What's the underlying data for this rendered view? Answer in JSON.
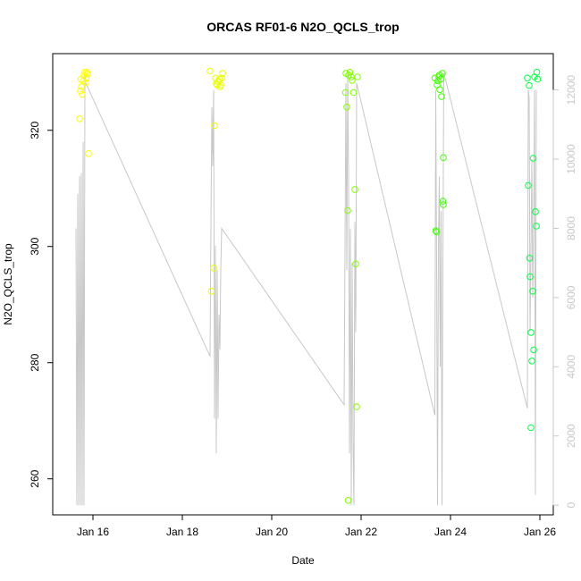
{
  "chart_data": {
    "type": "scatter",
    "title": "ORCAS RF01-6 N2O_QCLS_trop",
    "xlabel": "Date",
    "ylabel": "N2O_QCLS_trop",
    "xlim": [
      15.1,
      26.3
    ],
    "ylim": [
      253.8,
      333.2
    ],
    "x_ticks": [
      16,
      18,
      20,
      22,
      24,
      26
    ],
    "x_tick_labels": [
      "Jan 16",
      "Jan 18",
      "Jan 20",
      "Jan 22",
      "Jan 24",
      "Jan 26"
    ],
    "y_ticks": [
      260,
      280,
      300,
      320
    ],
    "y_tick_labels": [
      "260",
      "280",
      "300",
      "320"
    ],
    "y2_ticks": [
      0,
      2000,
      4000,
      6000,
      8000,
      10000,
      12000
    ],
    "y2_tick_labels": [
      "0",
      "2000",
      "4000",
      "6000",
      "8000",
      "10000",
      "12000"
    ],
    "y2lim": [
      -280,
      13050
    ],
    "grid": false,
    "marker_colors": [
      "#ffff00",
      "#e8ff00",
      "#bfff00",
      "#80ff00",
      "#40ff00",
      "#00ff40"
    ],
    "line_color": "#c8c8c8",
    "series": [
      {
        "values": [
          [
            15.72,
            326.8
          ],
          [
            15.74,
            327.5
          ],
          [
            15.7,
            322.0
          ],
          [
            15.76,
            326.2
          ],
          [
            15.8,
            329.5
          ],
          [
            15.82,
            330.0
          ],
          [
            15.85,
            329.0
          ],
          [
            15.78,
            328.5
          ],
          [
            15.88,
            329.7
          ],
          [
            15.9,
            316.0
          ],
          [
            15.73,
            328.8
          ],
          [
            15.86,
            330.0
          ],
          [
            15.84,
            328.2
          ],
          [
            18.62,
            330.2
          ],
          [
            18.65,
            292.3
          ],
          [
            18.7,
            296.3
          ],
          [
            18.72,
            320.8
          ],
          [
            18.74,
            329.0
          ],
          [
            18.78,
            327.8
          ],
          [
            18.8,
            328.4
          ],
          [
            18.83,
            328.8
          ],
          [
            18.86,
            327.8
          ],
          [
            18.88,
            329.0
          ],
          [
            18.9,
            329.8
          ],
          [
            18.76,
            328.0
          ],
          [
            18.84,
            327.5
          ],
          [
            21.65,
            326.5
          ],
          [
            21.68,
            324.0
          ],
          [
            21.7,
            306.2
          ],
          [
            21.72,
            329.5
          ],
          [
            21.75,
            330.0
          ],
          [
            21.78,
            329.2
          ],
          [
            21.8,
            328.6
          ],
          [
            21.83,
            326.5
          ],
          [
            21.86,
            309.8
          ],
          [
            21.88,
            297.0
          ],
          [
            21.9,
            272.4
          ],
          [
            21.92,
            329.2
          ],
          [
            21.71,
            256.3
          ],
          [
            21.66,
            329.8
          ],
          [
            23.65,
            329.0
          ],
          [
            23.67,
            302.7
          ],
          [
            23.69,
            302.5
          ],
          [
            23.7,
            327.8
          ],
          [
            23.72,
            328.5
          ],
          [
            23.74,
            329.2
          ],
          [
            23.76,
            327.0
          ],
          [
            23.78,
            328.8
          ],
          [
            23.8,
            325.8
          ],
          [
            23.82,
            329.8
          ],
          [
            23.84,
            315.3
          ],
          [
            23.83,
            307.8
          ],
          [
            23.84,
            307.2
          ],
          [
            23.75,
            329.5
          ],
          [
            25.72,
            329.0
          ],
          [
            25.74,
            310.5
          ],
          [
            25.76,
            327.7
          ],
          [
            25.77,
            298.0
          ],
          [
            25.78,
            294.8
          ],
          [
            25.8,
            285.2
          ],
          [
            25.82,
            280.3
          ],
          [
            25.84,
            292.3
          ],
          [
            25.85,
            315.2
          ],
          [
            25.86,
            282.2
          ],
          [
            25.88,
            329.2
          ],
          [
            25.9,
            306.0
          ],
          [
            25.92,
            303.5
          ],
          [
            25.93,
            330.0
          ],
          [
            25.95,
            328.8
          ],
          [
            25.8,
            268.8
          ]
        ]
      }
    ],
    "altitude_series": {
      "axis": "right",
      "x": [
        15.62,
        15.64,
        15.66,
        15.68,
        15.7,
        15.72,
        15.74,
        15.76,
        15.78,
        15.8,
        15.82,
        15.84,
        18.62,
        18.64,
        18.66,
        18.68,
        18.7,
        18.72,
        18.74,
        18.76,
        18.78,
        18.8,
        18.82,
        18.84,
        18.86,
        18.88,
        21.62,
        21.64,
        21.66,
        21.68,
        21.7,
        21.72,
        21.74,
        21.76,
        21.78,
        21.8,
        21.82,
        21.84,
        21.86,
        21.88,
        21.9,
        23.65,
        23.67,
        23.69,
        23.71,
        23.73,
        23.75,
        23.77,
        23.79,
        23.81,
        23.83,
        23.85,
        25.72,
        25.74,
        25.76,
        25.78,
        25.8,
        25.82,
        25.84,
        25.86,
        25.88,
        25.9,
        25.92
      ],
      "y": [
        8000,
        0,
        9000,
        0,
        9500,
        0,
        9600,
        0,
        10500,
        0,
        12500,
        12200,
        4300,
        8200,
        11500,
        9800,
        12000,
        2500,
        7500,
        1500,
        6800,
        2500,
        5500,
        4500,
        6800,
        8000,
        2900,
        7400,
        12200,
        6800,
        12500,
        9500,
        1500,
        8000,
        0,
        7000,
        1800,
        0,
        8200,
        5000,
        12200,
        2600,
        12000,
        7000,
        0,
        7500,
        9500,
        4000,
        8500,
        0,
        7000,
        12500,
        2800,
        12000,
        11800,
        5000,
        7200,
        10000,
        6000,
        8000,
        12000,
        300,
        12000
      ]
    }
  }
}
